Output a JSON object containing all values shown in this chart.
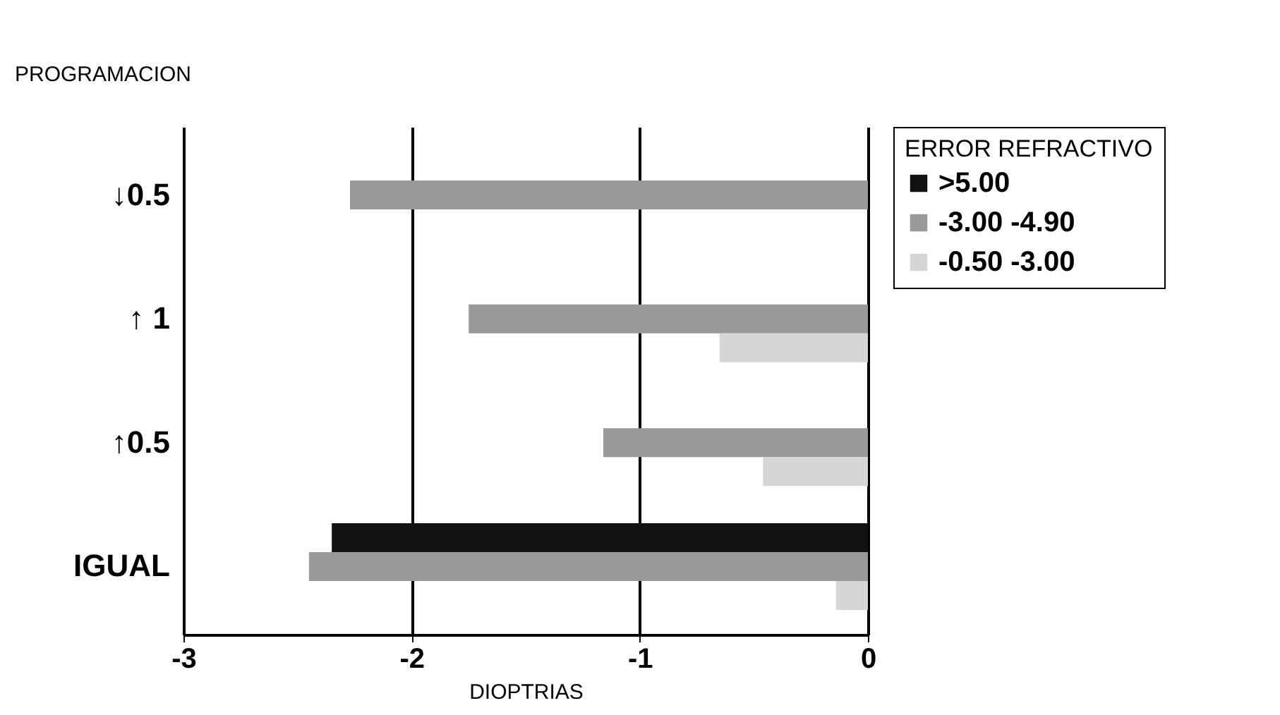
{
  "chart_data": {
    "type": "bar",
    "orientation": "horizontal",
    "ylabel": "PROGRAMACION",
    "xlabel": "DIOPTRIAS",
    "legend_title": "ERROR REFRACTIVO",
    "categories": [
      "↓0.5",
      "↑ 1",
      "↑0.5",
      "IGUAL"
    ],
    "series": [
      {
        "name": ">5.00",
        "color": "#111111",
        "values": [
          null,
          null,
          null,
          -2.35
        ]
      },
      {
        "name": "-3.00 -4.90",
        "color": "#9a9a9a",
        "values": [
          -2.27,
          -1.75,
          -1.16,
          -2.45
        ]
      },
      {
        "name": "-0.50  -3.00",
        "color": "#d6d6d6",
        "values": [
          null,
          -0.65,
          -0.46,
          -0.14
        ]
      }
    ],
    "xlim": [
      -3,
      0
    ],
    "xticks": [
      -3,
      -2,
      -1,
      0
    ],
    "grid": "x",
    "legend": "right"
  }
}
